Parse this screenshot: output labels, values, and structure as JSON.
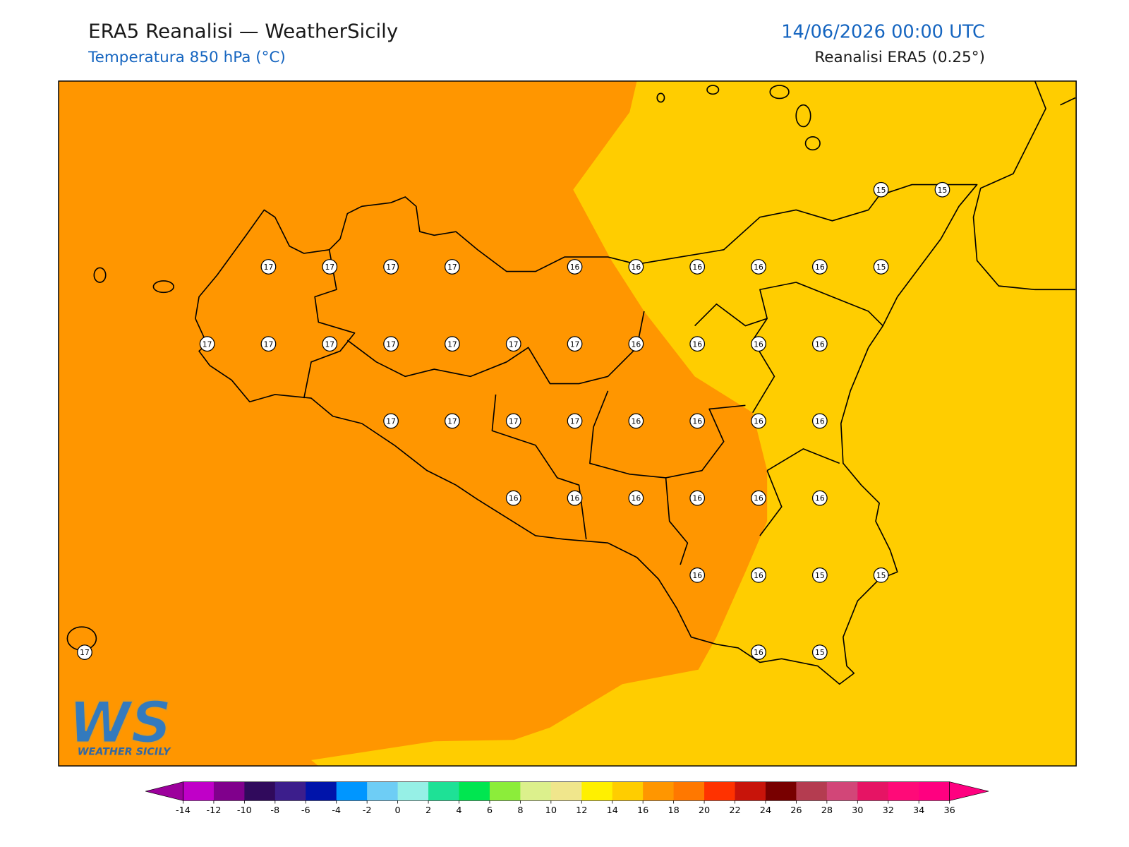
{
  "header": {
    "title": "ERA5 Reanalisi — WeatherSicily",
    "subtitle": "Temperatura 850 hPa (°C)",
    "date": "14/06/2026 00:00 UTC",
    "source": "Reanalisi ERA5 (0.25°)"
  },
  "stations": [
    15,
    15,
    17,
    17,
    17,
    17,
    16,
    16,
    16,
    16,
    16,
    15,
    17,
    17,
    17,
    17,
    17,
    17,
    17,
    16,
    16,
    16,
    16,
    17,
    17,
    17,
    17,
    16,
    16,
    16,
    16,
    16,
    16,
    16,
    16,
    16,
    16,
    16,
    16,
    15,
    15,
    17,
    16,
    15
  ],
  "colorbar": {
    "ticks": [
      -14,
      -12,
      -10,
      -8,
      -6,
      -4,
      -2,
      0,
      2,
      4,
      6,
      8,
      10,
      12,
      14,
      16,
      18,
      20,
      22,
      24,
      26,
      28,
      30,
      32,
      34,
      36
    ],
    "colors": [
      "#c000c8",
      "#80008c",
      "#300a5c",
      "#3c1e8c",
      "#0014aa",
      "#0096ff",
      "#6ecdf5",
      "#96f0e6",
      "#1ee196",
      "#00e650",
      "#8ced3a",
      "#dcf08c",
      "#f0e68c",
      "#fff000",
      "#ffcd00",
      "#ff9600",
      "#ff7800",
      "#ff3200",
      "#c8140a",
      "#780000",
      "#b43c50",
      "#d24678",
      "#e61464",
      "#ff0a78",
      "#ff0080"
    ],
    "under": "#9c009c",
    "over": "#ff0080"
  },
  "logo": {
    "mark": "WS",
    "text": "WEATHER SICILY"
  }
}
